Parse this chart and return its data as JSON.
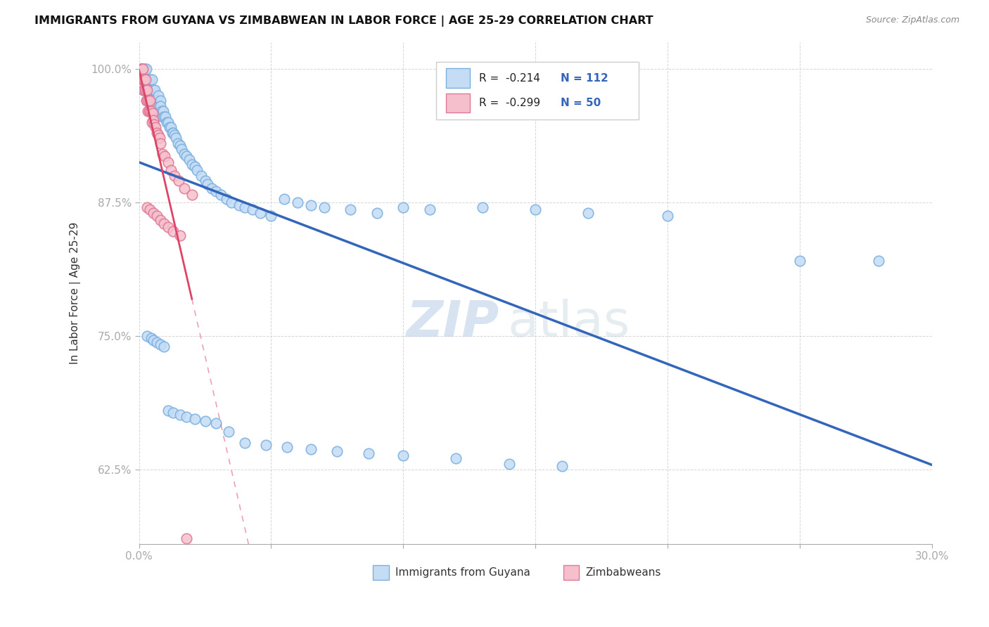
{
  "title": "IMMIGRANTS FROM GUYANA VS ZIMBABWEAN IN LABOR FORCE | AGE 25-29 CORRELATION CHART",
  "source": "Source: ZipAtlas.com",
  "ylabel": "In Labor Force | Age 25-29",
  "x_min": 0.0,
  "x_max": 0.3,
  "y_min": 0.555,
  "y_max": 1.025,
  "y_ticks": [
    0.625,
    0.75,
    0.875,
    1.0
  ],
  "y_tick_labels": [
    "62.5%",
    "75.0%",
    "87.5%",
    "100.0%"
  ],
  "guyana_color_fill": "#c5dcf5",
  "guyana_color_edge": "#7ab0e0",
  "zimbabwe_color_fill": "#f5c0cc",
  "zimbabwe_color_edge": "#e07898",
  "guyana_line_color": "#3366bb",
  "zimbabwe_line_color": "#dd4466",
  "R_guyana": -0.214,
  "N_guyana": 112,
  "R_zimbabwe": -0.299,
  "N_zimbabwe": 50,
  "watermark_zip": "ZIP",
  "watermark_atlas": "atlas",
  "guyana_label": "Immigrants from Guyana",
  "zimbabwe_label": "Zimbabweans",
  "guyana_x": [
    0.0008,
    0.0008,
    0.001,
    0.0012,
    0.0015,
    0.0015,
    0.0018,
    0.002,
    0.002,
    0.0022,
    0.0025,
    0.0025,
    0.0028,
    0.003,
    0.003,
    0.0032,
    0.0035,
    0.0035,
    0.0038,
    0.004,
    0.004,
    0.0042,
    0.0045,
    0.0048,
    0.005,
    0.005,
    0.0052,
    0.0055,
    0.0058,
    0.006,
    0.006,
    0.0065,
    0.0068,
    0.007,
    0.0072,
    0.0075,
    0.0078,
    0.008,
    0.0082,
    0.0085,
    0.009,
    0.0092,
    0.0095,
    0.01,
    0.0105,
    0.011,
    0.0115,
    0.012,
    0.0125,
    0.013,
    0.0135,
    0.014,
    0.0148,
    0.0155,
    0.016,
    0.017,
    0.018,
    0.019,
    0.02,
    0.021,
    0.022,
    0.0235,
    0.025,
    0.026,
    0.0275,
    0.029,
    0.031,
    0.033,
    0.035,
    0.038,
    0.04,
    0.043,
    0.046,
    0.05,
    0.055,
    0.06,
    0.065,
    0.07,
    0.08,
    0.09,
    0.1,
    0.11,
    0.13,
    0.15,
    0.17,
    0.2,
    0.25,
    0.28,
    0.003,
    0.0045,
    0.0055,
    0.0068,
    0.008,
    0.0095,
    0.011,
    0.013,
    0.0155,
    0.018,
    0.021,
    0.025,
    0.029,
    0.034,
    0.04,
    0.048,
    0.056,
    0.065,
    0.075,
    0.087,
    0.1,
    0.12,
    0.14,
    0.16
  ],
  "guyana_y": [
    1.0,
    1.0,
    1.0,
    1.0,
    0.99,
    0.98,
    1.0,
    0.99,
    0.98,
    1.0,
    0.99,
    0.98,
    1.0,
    0.99,
    0.98,
    0.97,
    0.99,
    0.98,
    0.97,
    0.99,
    0.98,
    0.97,
    0.98,
    0.97,
    0.99,
    0.98,
    0.97,
    0.98,
    0.97,
    0.96,
    0.98,
    0.97,
    0.965,
    0.96,
    0.975,
    0.965,
    0.96,
    0.97,
    0.965,
    0.96,
    0.955,
    0.96,
    0.955,
    0.955,
    0.95,
    0.95,
    0.945,
    0.945,
    0.94,
    0.94,
    0.938,
    0.935,
    0.93,
    0.928,
    0.925,
    0.92,
    0.918,
    0.915,
    0.91,
    0.908,
    0.905,
    0.9,
    0.895,
    0.892,
    0.888,
    0.885,
    0.882,
    0.878,
    0.875,
    0.872,
    0.87,
    0.868,
    0.865,
    0.862,
    0.878,
    0.875,
    0.872,
    0.87,
    0.868,
    0.865,
    0.87,
    0.868,
    0.87,
    0.868,
    0.865,
    0.862,
    0.82,
    0.82,
    0.75,
    0.748,
    0.746,
    0.744,
    0.742,
    0.74,
    0.68,
    0.678,
    0.676,
    0.674,
    0.672,
    0.67,
    0.668,
    0.66,
    0.65,
    0.648,
    0.646,
    0.644,
    0.642,
    0.64,
    0.638,
    0.635,
    0.63,
    0.628
  ],
  "zimbabwe_x": [
    0.0008,
    0.0008,
    0.001,
    0.001,
    0.0012,
    0.0012,
    0.0015,
    0.0015,
    0.0018,
    0.0018,
    0.002,
    0.0022,
    0.0025,
    0.0025,
    0.0028,
    0.003,
    0.003,
    0.0032,
    0.0035,
    0.0038,
    0.004,
    0.0042,
    0.0045,
    0.0048,
    0.0052,
    0.0055,
    0.0058,
    0.0062,
    0.0068,
    0.0072,
    0.0078,
    0.0082,
    0.009,
    0.0098,
    0.011,
    0.012,
    0.0135,
    0.015,
    0.017,
    0.02,
    0.003,
    0.0042,
    0.0055,
    0.0068,
    0.0082,
    0.0095,
    0.011,
    0.013,
    0.0155,
    0.018
  ],
  "zimbabwe_y": [
    1.0,
    1.0,
    1.0,
    0.99,
    1.0,
    0.99,
    1.0,
    0.99,
    0.99,
    0.98,
    0.99,
    0.98,
    0.99,
    0.98,
    0.97,
    0.98,
    0.97,
    0.96,
    0.97,
    0.96,
    0.97,
    0.96,
    0.96,
    0.95,
    0.958,
    0.952,
    0.948,
    0.945,
    0.94,
    0.938,
    0.935,
    0.93,
    0.92,
    0.918,
    0.912,
    0.905,
    0.9,
    0.895,
    0.888,
    0.882,
    0.87,
    0.868,
    0.865,
    0.862,
    0.858,
    0.855,
    0.852,
    0.848,
    0.844,
    0.56
  ]
}
